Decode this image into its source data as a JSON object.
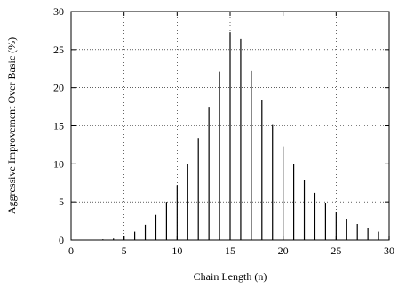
{
  "chart_data": {
    "type": "bar",
    "title": "",
    "xlabel": "Chain Length (n)",
    "ylabel": "Aggressive Improvement Over Basic (%)",
    "xlim": [
      0,
      30
    ],
    "ylim": [
      0,
      30
    ],
    "xticks": [
      0,
      5,
      10,
      15,
      20,
      25,
      30
    ],
    "yticks": [
      0,
      5,
      10,
      15,
      20,
      25,
      30
    ],
    "grid": true,
    "x": [
      1,
      2,
      3,
      4,
      5,
      6,
      7,
      8,
      9,
      10,
      11,
      12,
      13,
      14,
      15,
      16,
      17,
      18,
      19,
      20,
      21,
      22,
      23,
      24,
      25,
      26,
      27,
      28,
      29,
      30
    ],
    "values": [
      0,
      0,
      0.1,
      0.2,
      0.5,
      1.1,
      2.0,
      3.3,
      5.0,
      7.2,
      10.0,
      13.4,
      17.5,
      22.1,
      27.3,
      26.4,
      22.2,
      18.4,
      15.1,
      12.3,
      10.0,
      7.9,
      6.2,
      4.9,
      3.7,
      2.8,
      2.1,
      1.6,
      1.1,
      0.5
    ]
  }
}
